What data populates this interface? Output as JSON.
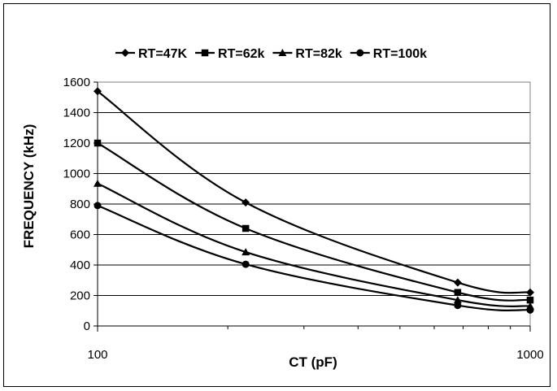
{
  "chart_data": {
    "type": "line",
    "xscale": "log",
    "xlim": [
      100,
      1000
    ],
    "ylim": [
      0,
      1600
    ],
    "xlabel": "CT (pF)",
    "ylabel": "FREQUENCY (kHz)",
    "x_ticks": [
      "100",
      "1000"
    ],
    "y_ticks": [
      "0",
      "200",
      "400",
      "600",
      "800",
      "1000",
      "1200",
      "1400",
      "1600"
    ],
    "grid": true,
    "legend_position": "top",
    "series": [
      {
        "name": "RT=47K",
        "marker": "diamond",
        "x": [
          100,
          220,
          680,
          1000
        ],
        "values": [
          1540,
          810,
          285,
          220
        ]
      },
      {
        "name": "RT=62k",
        "marker": "square",
        "x": [
          100,
          220,
          680,
          1000
        ],
        "values": [
          1200,
          640,
          220,
          170
        ]
      },
      {
        "name": "RT=82k",
        "marker": "triangle",
        "x": [
          100,
          220,
          680,
          1000
        ],
        "values": [
          935,
          485,
          170,
          130
        ]
      },
      {
        "name": "RT=100k",
        "marker": "circle",
        "x": [
          100,
          220,
          680,
          1000
        ],
        "values": [
          790,
          405,
          135,
          105
        ]
      }
    ]
  }
}
